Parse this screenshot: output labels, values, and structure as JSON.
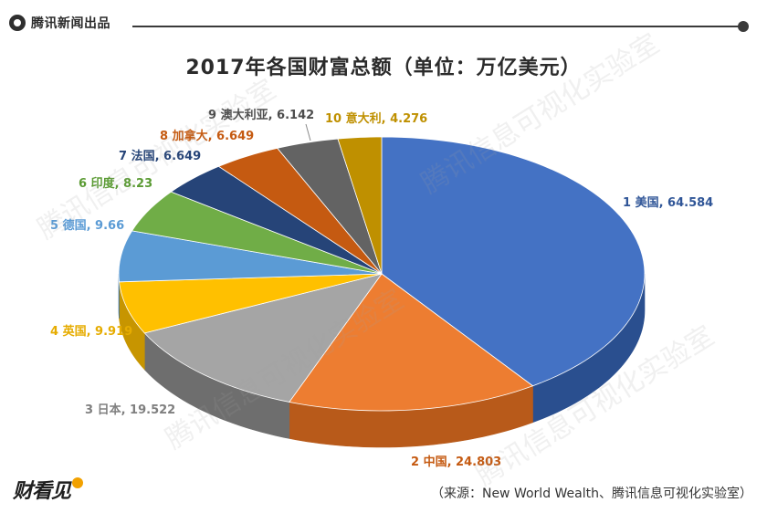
{
  "header": {
    "brand": "腾讯新闻出品"
  },
  "chart_data": {
    "type": "pie",
    "title": "2017年各国财富总额（单位：万亿美元）",
    "slices": [
      {
        "label": "1 美国, 64.584",
        "name": "美国",
        "value": 64.584,
        "color": "#4472C4",
        "side_color": "#2a4f8f",
        "label_color": "#2f5597"
      },
      {
        "label": "2 中国, 24.803",
        "name": "中国",
        "value": 24.803,
        "color": "#ED7D31",
        "side_color": "#b85a1a",
        "label_color": "#c55a11"
      },
      {
        "label": "3 日本, 19.522",
        "name": "日本",
        "value": 19.522,
        "color": "#A5A5A5",
        "side_color": "#6e6e6e",
        "label_color": "#7f7f7f"
      },
      {
        "label": "4 英国, 9.919",
        "name": "英国",
        "value": 9.919,
        "color": "#FFC000",
        "side_color": "#c79500",
        "label_color": "#e6ac00"
      },
      {
        "label": "5 德国, 9.66",
        "name": "德国",
        "value": 9.66,
        "color": "#5B9BD5",
        "side_color": "#3a73a6",
        "label_color": "#5b9bd5"
      },
      {
        "label": "6 印度, 8.23",
        "name": "印度",
        "value": 8.23,
        "color": "#70AD47",
        "side_color": "#4c7e2c",
        "label_color": "#5b9b34"
      },
      {
        "label": "7 法国, 6.649",
        "name": "法国",
        "value": 6.649,
        "color": "#264478",
        "side_color": "#16294a",
        "label_color": "#264478"
      },
      {
        "label": "8 加拿大, 6.649",
        "name": "加拿大",
        "value": 6.649,
        "color": "#C55A11",
        "side_color": "#8a3d0a",
        "label_color": "#c55a11"
      },
      {
        "label": "9 澳大利亚, 6.142",
        "name": "澳大利亚",
        "value": 6.142,
        "color": "#636363",
        "side_color": "#3c3c3c",
        "label_color": "#4d4d4d"
      },
      {
        "label": "10 意大利, 4.276",
        "name": "意大利",
        "value": 4.276,
        "color": "#BF9000",
        "side_color": "#8a6800",
        "label_color": "#bf9000"
      }
    ]
  },
  "watermark": "腾讯信息可视化实验室",
  "footer": {
    "logo": "财看见",
    "source": "（来源：New World Wealth、腾讯信息可视化实验室）"
  }
}
